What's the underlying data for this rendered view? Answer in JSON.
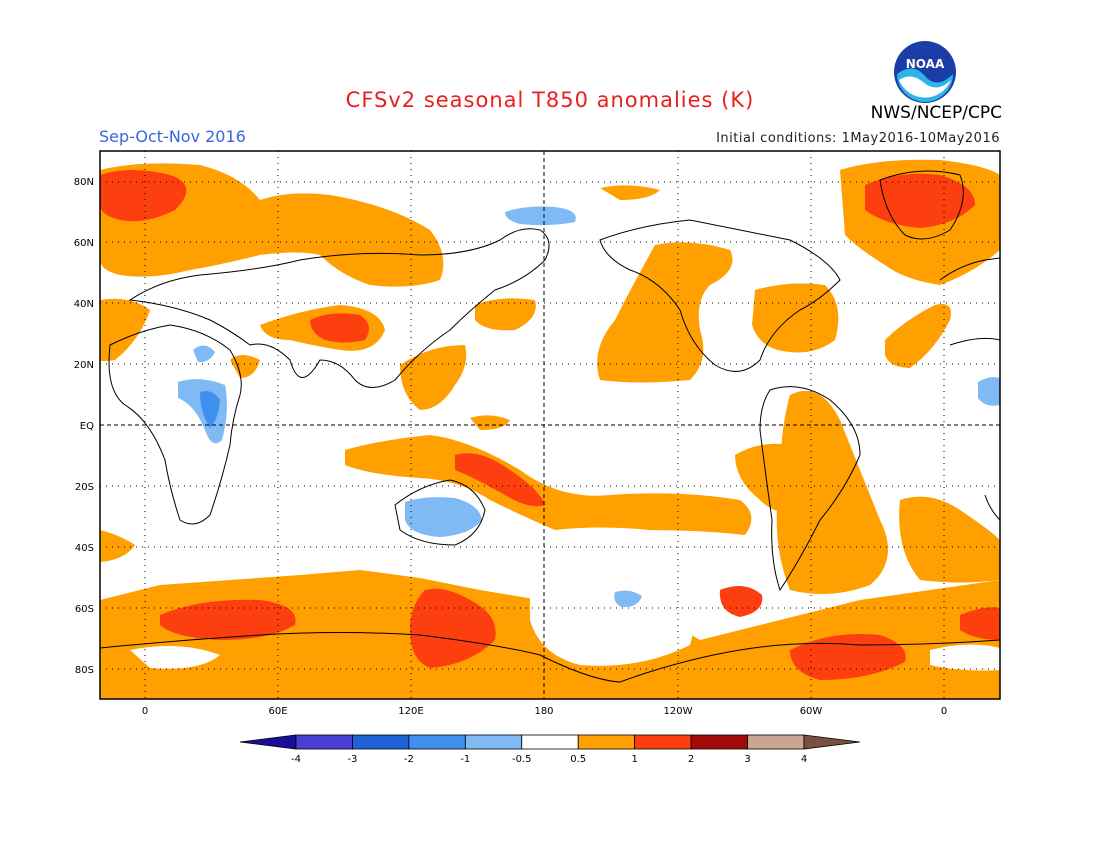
{
  "header": {
    "title": "CFSv2 seasonal T850 anomalies (K)",
    "season": "Sep-Oct-Nov 2016",
    "initial_conditions": "Initial conditions: 1May2016-10May2016",
    "agency": "NWS/NCEP/CPC",
    "logo_text": "NOAA"
  },
  "axes": {
    "lat_labels": [
      "80N",
      "60N",
      "40N",
      "20N",
      "EQ",
      "20S",
      "40S",
      "60S",
      "80S"
    ],
    "lon_labels": [
      "0",
      "60E",
      "120E",
      "180",
      "120W",
      "60W",
      "0"
    ]
  },
  "colorbar": {
    "labels": [
      "-4",
      "-3",
      "-2",
      "-1",
      "-0.5",
      "0.5",
      "1",
      "2",
      "3",
      "4"
    ],
    "colors": [
      "#1a0f9a",
      "#4a3fd3",
      "#1e62d6",
      "#3f8fef",
      "#7fbaf5",
      "#ffffff",
      "#ffa000",
      "#fd3f10",
      "#a50a0a",
      "#c9a593",
      "#7a5040"
    ]
  },
  "anomaly_colors": {
    "weak_negative": "#7fbaf5",
    "moderate_negative": "#3f8fef",
    "weak_positive": "#ffa000",
    "moderate_positive": "#fd3f10"
  }
}
